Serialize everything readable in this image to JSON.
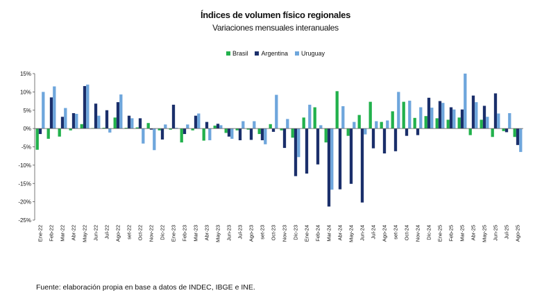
{
  "title": "Índices de volumen físico regionales",
  "subtitle": "Variaciones mensuales interanuales",
  "source": "Fuente: elaboración propia en base a datos de INDEC, IBGE e INE.",
  "colors": {
    "Brasil": "#22b14c",
    "Argentina": "#1b2f6b",
    "Uruguay": "#6ea6dc"
  },
  "chart_data": {
    "type": "bar",
    "title": "Índices de volumen físico regionales",
    "subtitle": "Variaciones mensuales interanuales",
    "legend_position": "top-center",
    "grid": false,
    "ylim": [
      -25,
      15
    ],
    "yticks": [
      "15%",
      "10%",
      "5%",
      "0%",
      "-5%",
      "-10%",
      "-15%",
      "-20%",
      "-25%"
    ],
    "x_tick_labels": [
      "Ene-22",
      "Feb-22",
      "Mar-22",
      "Abr-22",
      "May-22",
      "Jun-22",
      "Jul-22",
      "Ago-22",
      "set-22",
      "Oct-22",
      "Nov-22",
      "Dic-22",
      "Ene-23",
      "Feb-23",
      "Mar-23",
      "Abr-23",
      "May-23",
      "Jun-23",
      "Jul-23",
      "Ago-23",
      "set-23",
      "Oct-23",
      "Nov-23",
      "Dic-23",
      "Ene-24",
      "Feb-24",
      "Mar-24",
      "Abr-24",
      "May-24",
      "Jun-24",
      "Jul-24",
      "Ago-24",
      "set-24",
      "Oct-24",
      "Nov-24",
      "Dic-24",
      "Ene-25",
      "Feb-25",
      "Mar-25",
      "Abr-25",
      "May-25",
      "Jun-25",
      "Jul-25",
      "Ago-25"
    ],
    "categories": [
      "Ene-22",
      "Feb-22",
      "Mar-22",
      "Abr-22",
      "May-22",
      "Jun-22",
      "Jul-22",
      "Ago-22",
      "Sep-22",
      "Oct-22",
      "Nov-22",
      "Dic-22",
      "Ene-23",
      "Feb-23",
      "Mar-23",
      "Abr-23",
      "May-23",
      "Jun-23",
      "Jul-23",
      "Ago-23",
      "Sep-23",
      "Oct-23",
      "Nov-23",
      "Dic-23",
      "Ene-24",
      "Feb-24",
      "Mar-24",
      "Abr-24",
      "May-24",
      "Jun-24",
      "Jul-24",
      "Ago-24",
      "Sep-24",
      "Oct-24",
      "Nov-24",
      "Dic-24",
      "Ene-25",
      "Feb-25",
      "Mar-25",
      "Abr-25",
      "May-25",
      "Jun-25",
      "Jul-25",
      "Ago-25"
    ],
    "series": [
      {
        "name": "Brasil",
        "values": [
          -5.8,
          -2.8,
          -2.2,
          -0.5,
          1.2,
          0.1,
          0.2,
          3.0,
          0.2,
          0.3,
          1.5,
          -0.5,
          -0.3,
          -3.8,
          -0.5,
          -3.3,
          0.8,
          -1.2,
          -0.5,
          -0.3,
          -1.5,
          1.2,
          -0.5,
          -2.5,
          3.0,
          5.8,
          -3.8,
          10.2,
          -2.0,
          3.7,
          7.3,
          1.8,
          4.7,
          7.3,
          2.9,
          3.4,
          2.8,
          2.4,
          3.0,
          -1.8,
          2.4,
          -2.3,
          -0.7,
          -2.3
        ]
      },
      {
        "name": "Argentina",
        "values": [
          -1.5,
          8.5,
          3.2,
          4.2,
          11.6,
          6.8,
          5.0,
          7.2,
          3.5,
          2.8,
          -0.3,
          -3.0,
          6.5,
          -1.5,
          3.5,
          1.8,
          1.3,
          -2.2,
          -3.2,
          -3.1,
          -3.2,
          -0.9,
          -5.3,
          -13.0,
          -12.3,
          -9.8,
          -21.3,
          -16.6,
          -15.1,
          -20.2,
          -5.4,
          -6.8,
          -6.2,
          -2.0,
          -1.8,
          8.4,
          7.5,
          5.8,
          5.2,
          9.0,
          6.2,
          9.6,
          -1.0,
          -4.5
        ]
      },
      {
        "name": "Uruguay",
        "values": [
          10.0,
          11.5,
          5.6,
          4.0,
          12.0,
          3.5,
          -1.1,
          9.3,
          2.8,
          -4.1,
          -5.9,
          1.1,
          0.2,
          1.1,
          4.1,
          -3.2,
          0.9,
          -2.8,
          2.0,
          2.0,
          -4.3,
          9.2,
          2.6,
          -7.8,
          6.5,
          0.9,
          -16.7,
          6.1,
          1.8,
          -1.6,
          2.0,
          2.2,
          10.0,
          7.6,
          5.8,
          5.7,
          7.0,
          5.2,
          15.0,
          7.2,
          3.2,
          4.1,
          4.2,
          -6.4
        ]
      }
    ]
  }
}
